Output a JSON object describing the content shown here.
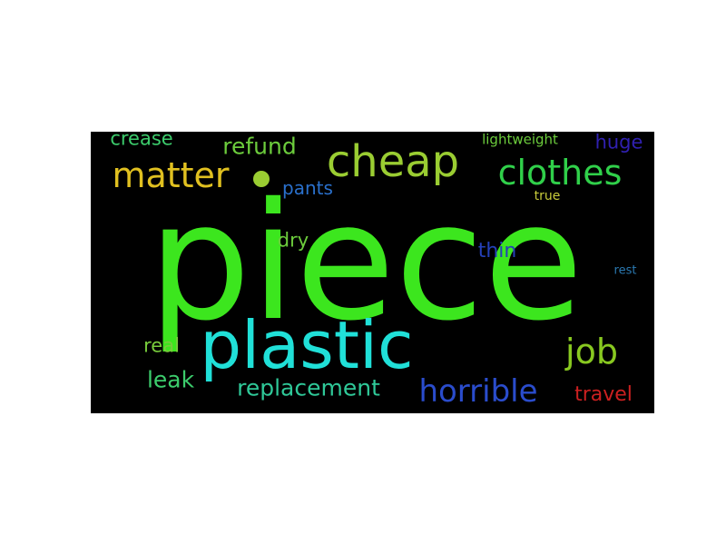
{
  "background_color": "#000000",
  "page_background": "#ffffff",
  "words": [
    {
      "key": "piece",
      "text": "piece",
      "color": "#3ce61e",
      "weight": 1.0
    },
    {
      "key": "plastic",
      "text": "plastic",
      "color": "#20e0d8",
      "weight": 0.55
    },
    {
      "key": "cheap",
      "text": "cheap",
      "color": "#9acd32",
      "weight": 0.4
    },
    {
      "key": "clothes",
      "text": "clothes",
      "color": "#30d04a",
      "weight": 0.33
    },
    {
      "key": "matter",
      "text": "matter",
      "color": "#e0c020",
      "weight": 0.33
    },
    {
      "key": "job",
      "text": "job",
      "color": "#88c820",
      "weight": 0.33
    },
    {
      "key": "horrible",
      "text": "horrible",
      "color": "#2a4ccc",
      "weight": 0.3
    },
    {
      "key": "replacement",
      "text": "replacement",
      "color": "#2fc898",
      "weight": 0.22
    },
    {
      "key": "refund",
      "text": "refund",
      "color": "#6ccc3c",
      "weight": 0.2
    },
    {
      "key": "leak",
      "text": "leak",
      "color": "#3ccc6c",
      "weight": 0.2
    },
    {
      "key": "travel",
      "text": "travel",
      "color": "#cc2020",
      "weight": 0.2
    },
    {
      "key": "crease",
      "text": "crease",
      "color": "#3ccc6c",
      "weight": 0.17
    },
    {
      "key": "huge",
      "text": "huge",
      "color": "#3020b0",
      "weight": 0.17
    },
    {
      "key": "thin",
      "text": "thin",
      "color": "#2440b8",
      "weight": 0.17
    },
    {
      "key": "real",
      "text": "real",
      "color": "#78cc3c",
      "weight": 0.17
    },
    {
      "key": "dry",
      "text": "dry",
      "color": "#6ccc3c",
      "weight": 0.16
    },
    {
      "key": "pants",
      "text": "pants",
      "color": "#2a70cc",
      "weight": 0.16
    },
    {
      "key": "lightweight",
      "text": "lightweight",
      "color": "#6ccc3c",
      "weight": 0.12
    },
    {
      "key": "true",
      "text": "true",
      "color": "#c8cc3c",
      "weight": 0.1
    },
    {
      "key": "rest",
      "text": "rest",
      "color": "#2a78b0",
      "weight": 0.1
    }
  ]
}
